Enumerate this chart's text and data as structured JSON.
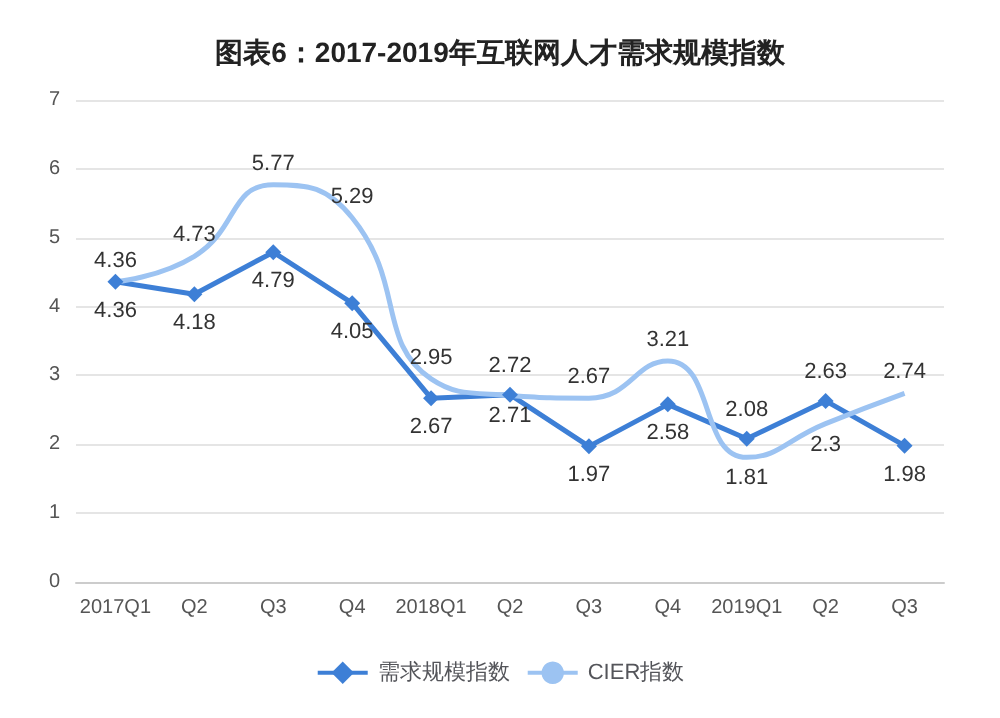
{
  "chart_data": {
    "type": "line",
    "title": "图表6：2017-2019年互联网人才需求规模指数",
    "categories": [
      "2017Q1",
      "Q2",
      "Q3",
      "Q4",
      "2018Q1",
      "Q2",
      "Q3",
      "Q4",
      "2019Q1",
      "Q2",
      "Q3"
    ],
    "series": [
      {
        "name": "需求规模指数",
        "color": "#3d7fd6",
        "marker": "diamond",
        "values": [
          4.36,
          4.18,
          4.79,
          4.05,
          2.67,
          2.72,
          1.97,
          2.58,
          2.08,
          2.63,
          1.98
        ]
      },
      {
        "name": "CIER指数",
        "color": "#9cc3f2",
        "marker": "none",
        "values": [
          4.36,
          4.73,
          5.77,
          5.29,
          2.95,
          2.71,
          2.67,
          3.21,
          1.81,
          2.3,
          2.74
        ]
      }
    ],
    "ylim": [
      0,
      7
    ],
    "yticks": [
      0,
      1,
      2,
      3,
      4,
      5,
      6,
      7
    ],
    "grid": "y",
    "legend": "bottom",
    "data_labels": true
  }
}
